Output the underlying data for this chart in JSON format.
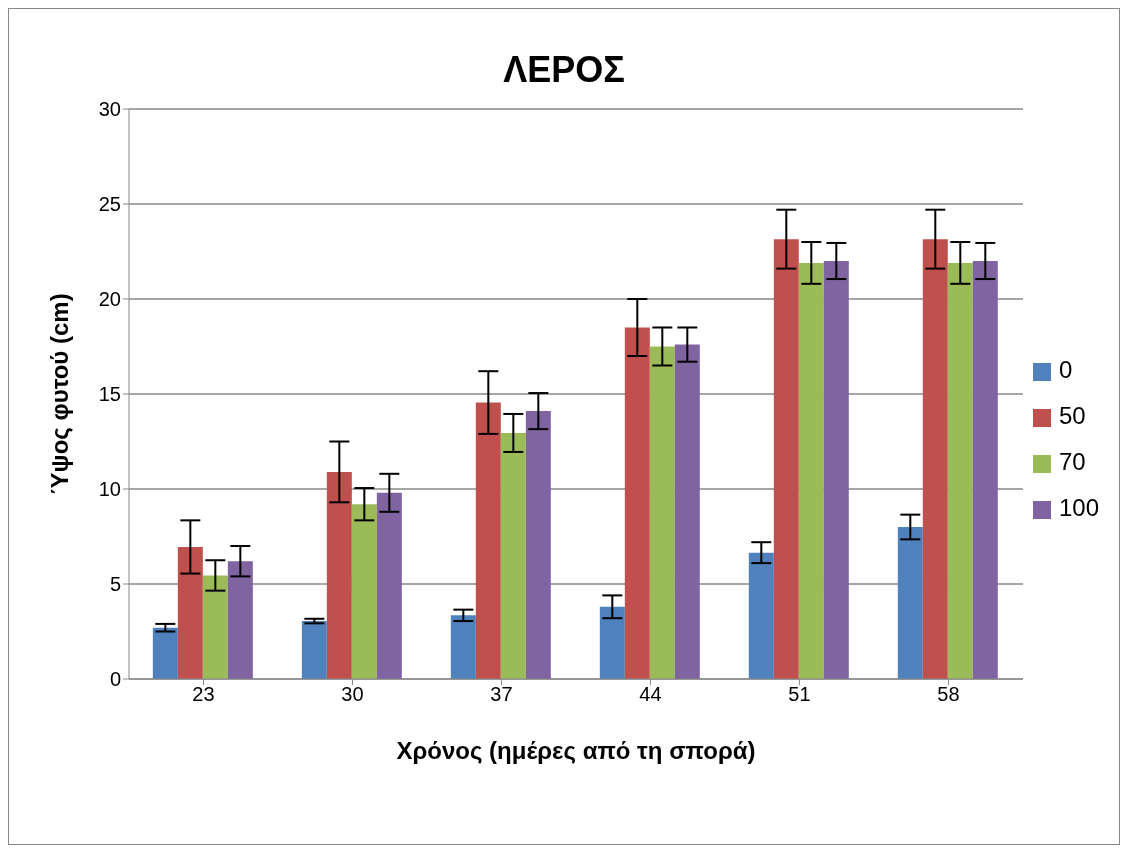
{
  "chart_data": {
    "type": "bar",
    "title": "ΛΕΡΟΣ",
    "xlabel": "Χρόνος (ημέρες από τη σπορά)",
    "ylabel": "Ύψος φυτού (cm)",
    "categories": [
      "23",
      "30",
      "37",
      "44",
      "51",
      "58"
    ],
    "series": [
      {
        "name": "0",
        "color": "#4f81bd",
        "values": [
          2.7,
          3.05,
          3.35,
          3.8,
          6.65,
          8.0
        ],
        "errors": [
          0.2,
          0.12,
          0.3,
          0.6,
          0.55,
          0.65
        ]
      },
      {
        "name": "50",
        "color": "#c0504d",
        "values": [
          6.95,
          10.9,
          14.55,
          18.5,
          23.15,
          23.15
        ],
        "errors": [
          1.4,
          1.6,
          1.65,
          1.5,
          1.55,
          1.55
        ]
      },
      {
        "name": "70",
        "color": "#9bbb59",
        "values": [
          5.45,
          9.2,
          12.95,
          17.5,
          21.9,
          21.9
        ],
        "errors": [
          0.8,
          0.85,
          1.0,
          1.0,
          1.1,
          1.1
        ]
      },
      {
        "name": "100",
        "color": "#8064a2",
        "values": [
          6.2,
          9.8,
          14.1,
          17.6,
          22.0,
          22.0
        ],
        "errors": [
          0.8,
          1.0,
          0.95,
          0.9,
          0.95,
          0.95
        ]
      }
    ],
    "ylim": [
      0,
      30
    ],
    "yticks": [
      0,
      5,
      10,
      15,
      20,
      25,
      30
    ],
    "grid": "y",
    "legend": "right"
  }
}
